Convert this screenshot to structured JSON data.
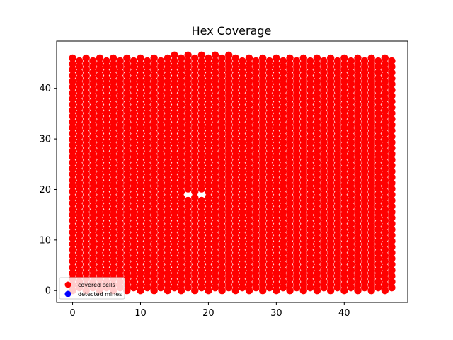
{
  "chart_data": {
    "type": "scatter",
    "title": "Hex Coverage",
    "xlabel": "",
    "ylabel": "",
    "xlim": [
      -2.35,
      49.35
    ],
    "ylim": [
      -2.35,
      49.35
    ],
    "xticks": [
      0,
      10,
      20,
      30,
      40
    ],
    "yticks": [
      0,
      10,
      20,
      30,
      40
    ],
    "grid": false,
    "legend_position": "lower-left",
    "series": [
      {
        "name": "covered cells",
        "color": "#ff0000",
        "grid_columns": [
          0,
          47
        ],
        "row_spacing": 1.15,
        "row_offset_odd_columns": 0.575,
        "default_max_y": 46,
        "columns_extended_max_y": {
          "range": [
            15,
            24
          ],
          "max_y": 47
        },
        "gaps": [
          {
            "x": 17,
            "y": 19
          },
          {
            "x": 18,
            "y": 19
          },
          {
            "x": 19,
            "y": 19
          }
        ]
      },
      {
        "name": "detected mines",
        "color": "#0000ff",
        "points": []
      }
    ]
  }
}
